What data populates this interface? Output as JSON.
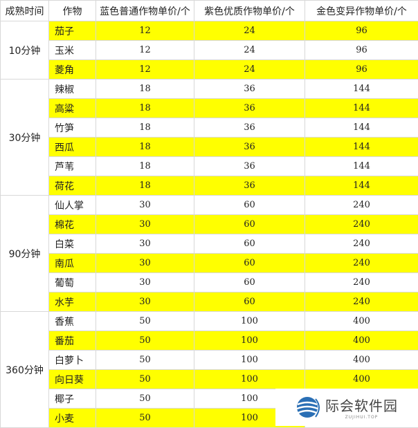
{
  "headers": [
    "成熟时间",
    "作物",
    "蓝色普通作物单价/个",
    "紫色优质作物单价/个",
    "金色变异作物单价/个"
  ],
  "highlight_color": "#ffff00",
  "groups": [
    {
      "time": "10分钟",
      "rows": [
        {
          "crop": "茄子",
          "blue": "12",
          "purple": "24",
          "gold": "96",
          "highlight": true
        },
        {
          "crop": "玉米",
          "blue": "12",
          "purple": "24",
          "gold": "96",
          "highlight": false
        },
        {
          "crop": "菱角",
          "blue": "12",
          "purple": "24",
          "gold": "96",
          "highlight": true
        }
      ]
    },
    {
      "time": "30分钟",
      "rows": [
        {
          "crop": "辣椒",
          "blue": "18",
          "purple": "36",
          "gold": "144",
          "highlight": false
        },
        {
          "crop": "高粱",
          "blue": "18",
          "purple": "36",
          "gold": "144",
          "highlight": true
        },
        {
          "crop": "竹笋",
          "blue": "18",
          "purple": "36",
          "gold": "144",
          "highlight": false
        },
        {
          "crop": "西瓜",
          "blue": "18",
          "purple": "36",
          "gold": "144",
          "highlight": true
        },
        {
          "crop": "芦苇",
          "blue": "18",
          "purple": "36",
          "gold": "144",
          "highlight": false
        },
        {
          "crop": "荷花",
          "blue": "18",
          "purple": "36",
          "gold": "144",
          "highlight": true
        }
      ]
    },
    {
      "time": "90分钟",
      "rows": [
        {
          "crop": "仙人掌",
          "blue": "30",
          "purple": "60",
          "gold": "240",
          "highlight": false
        },
        {
          "crop": "棉花",
          "blue": "30",
          "purple": "60",
          "gold": "240",
          "highlight": true
        },
        {
          "crop": "白菜",
          "blue": "30",
          "purple": "60",
          "gold": "240",
          "highlight": false
        },
        {
          "crop": "南瓜",
          "blue": "30",
          "purple": "60",
          "gold": "240",
          "highlight": true
        },
        {
          "crop": "葡萄",
          "blue": "30",
          "purple": "60",
          "gold": "240",
          "highlight": false
        },
        {
          "crop": "水芋",
          "blue": "30",
          "purple": "60",
          "gold": "240",
          "highlight": true
        }
      ]
    },
    {
      "time": "360分钟",
      "rows": [
        {
          "crop": "香蕉",
          "blue": "50",
          "purple": "100",
          "gold": "400",
          "highlight": false
        },
        {
          "crop": "番茄",
          "blue": "50",
          "purple": "100",
          "gold": "400",
          "highlight": true
        },
        {
          "crop": "白萝卜",
          "blue": "50",
          "purple": "100",
          "gold": "400",
          "highlight": false
        },
        {
          "crop": "向日葵",
          "blue": "50",
          "purple": "100",
          "gold": "400",
          "highlight": true
        },
        {
          "crop": "椰子",
          "blue": "50",
          "purple": "100",
          "gold": "",
          "highlight": false
        },
        {
          "crop": "小麦",
          "blue": "50",
          "purple": "100",
          "gold": "",
          "highlight": true
        }
      ]
    }
  ],
  "watermark": {
    "name": "际会软件园",
    "domain": "ZUJIHUI.TOP"
  }
}
